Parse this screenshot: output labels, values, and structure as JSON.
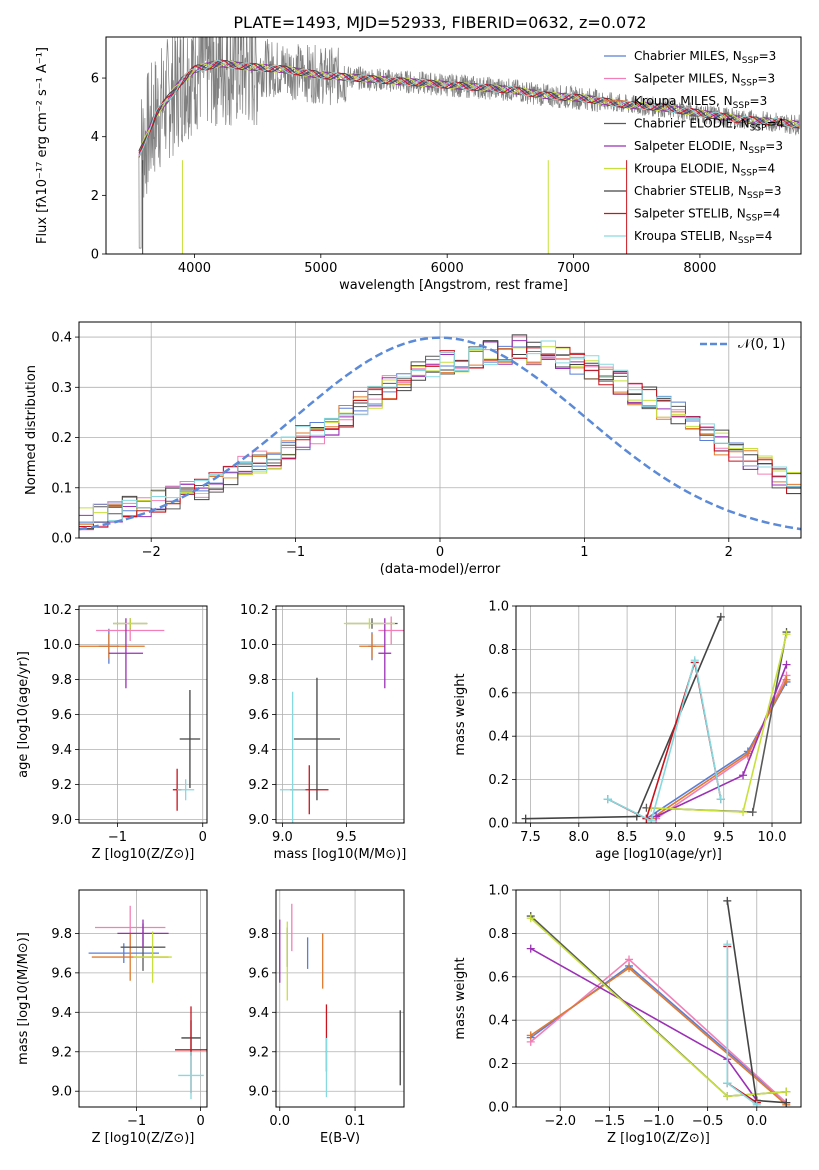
{
  "title": "PLATE=1493, MJD=52933, FIBERID=0632, z=0.072",
  "colors": {
    "Chabrier MILES": "#5b7fd6",
    "Salpeter MILES": "#f27fb6",
    "Kroupa MILES": "#e07a2e",
    "Chabrier ELODIE": "#5a5a5a",
    "Salpeter ELODIE": "#9b30b5",
    "Kroupa ELODIE": "#c8e03c",
    "Chabrier STELIB": "#444444",
    "Salpeter STELIB": "#c8141e",
    "Kroupa STELIB": "#86d9df",
    "data": "#808080",
    "normal": "#5b8ad8"
  },
  "chart_data": [
    {
      "type": "line",
      "panel": "spectrum",
      "xlabel": "wavelength [Angstrom, rest frame]",
      "ylabel": "Flux [fλ10⁻¹⁷ erg cm⁻² s⁻¹ A⁻¹]",
      "xlim": [
        3300,
        8800
      ],
      "ylim": [
        0,
        7.4
      ],
      "xticks": [
        "4000",
        "5000",
        "6000",
        "7000",
        "8000"
      ],
      "yticks": [
        "0",
        "2",
        "4",
        "6"
      ],
      "legend": [
        {
          "name": "Chabrier MILES",
          "nssp": "3"
        },
        {
          "name": "Salpeter MILES",
          "nssp": "3"
        },
        {
          "name": "Kroupa MILES",
          "nssp": "3"
        },
        {
          "name": "Chabrier ELODIE",
          "nssp": "4"
        },
        {
          "name": "Salpeter ELODIE",
          "nssp": "3"
        },
        {
          "name": "Kroupa ELODIE",
          "nssp": "4"
        },
        {
          "name": "Chabrier STELIB",
          "nssp": "3"
        },
        {
          "name": "Salpeter STELIB",
          "nssp": "4"
        },
        {
          "name": "Kroupa STELIB",
          "nssp": "4"
        }
      ],
      "legend_position": "right",
      "model_continuum": {
        "x": [
          3560,
          3700,
          3900,
          4000,
          4200,
          4400,
          4700,
          5000,
          5300,
          5600,
          5900,
          6200,
          6500,
          6800,
          7100,
          7400,
          7700,
          8000,
          8300,
          8600,
          8800
        ],
        "y": [
          3.4,
          4.8,
          5.9,
          6.3,
          6.5,
          6.4,
          6.3,
          6.1,
          6.0,
          5.9,
          5.8,
          5.7,
          5.6,
          5.4,
          5.3,
          5.1,
          5.0,
          4.8,
          4.6,
          4.5,
          4.4
        ]
      },
      "grid": false
    },
    {
      "type": "bar",
      "panel": "residual_histogram",
      "xlabel": "(data-model)/error",
      "ylabel": "Normed distribution",
      "xlim": [
        -2.5,
        2.5
      ],
      "ylim": [
        0,
        0.43
      ],
      "xticks": [
        "−2",
        "−1",
        "0",
        "1",
        "2"
      ],
      "yticks": [
        "0.0",
        "0.1",
        "0.2",
        "0.3",
        "0.4"
      ],
      "bin_width": 0.1,
      "bin_start": -2.5,
      "histogram": [
        0.04,
        0.045,
        0.05,
        0.06,
        0.065,
        0.07,
        0.08,
        0.09,
        0.1,
        0.11,
        0.12,
        0.14,
        0.15,
        0.16,
        0.18,
        0.2,
        0.21,
        0.22,
        0.24,
        0.27,
        0.28,
        0.3,
        0.31,
        0.33,
        0.34,
        0.35,
        0.35,
        0.36,
        0.37,
        0.37,
        0.38,
        0.37,
        0.37,
        0.36,
        0.35,
        0.34,
        0.33,
        0.31,
        0.29,
        0.28,
        0.26,
        0.25,
        0.23,
        0.21,
        0.19,
        0.17,
        0.16,
        0.14,
        0.12,
        0.11,
        0.1
      ],
      "normal": {
        "name": "𝒩(0, 1)",
        "mean": 0,
        "std": 1
      },
      "legend_position": "top-right",
      "grid": true
    },
    {
      "type": "scatter",
      "panel": "age_vs_Z",
      "xlabel": "Z [log10(Z/Z⊙)]",
      "ylabel": "age  [log10(age/yr)]",
      "xlim": [
        -1.45,
        0.05
      ],
      "ylim": [
        8.98,
        10.22
      ],
      "xticks": [
        "−1",
        "0"
      ],
      "yticks": [
        "9.0",
        "9.2",
        "9.4",
        "9.6",
        "9.8",
        "10.0",
        "10.2"
      ],
      "points": [
        {
          "model": "Chabrier MILES",
          "x": -1.1,
          "y": 9.99,
          "xerr": 0.12,
          "yerr": 0.1
        },
        {
          "model": "Salpeter MILES",
          "x": -0.85,
          "y": 10.08,
          "xerr": 0.4,
          "yerr": 0.06
        },
        {
          "model": "Kroupa MILES",
          "x": -1.1,
          "y": 9.99,
          "xerr": 0.42,
          "yerr": 0.07
        },
        {
          "model": "Chabrier ELODIE",
          "x": -0.85,
          "y": 10.12,
          "xerr": 0.2,
          "yerr": 0.03
        },
        {
          "model": "Salpeter ELODIE",
          "x": -0.9,
          "y": 9.95,
          "xerr": 0.2,
          "yerr": 0.2
        },
        {
          "model": "Kroupa ELODIE",
          "x": -0.85,
          "y": 10.12,
          "xerr": 0.2,
          "yerr": 0.03
        },
        {
          "model": "Chabrier STELIB",
          "x": -0.15,
          "y": 9.46,
          "xerr": 0.12,
          "yerr": 0.28
        },
        {
          "model": "Salpeter STELIB",
          "x": -0.3,
          "y": 9.17,
          "xerr": 0.05,
          "yerr": 0.12
        },
        {
          "model": "Kroupa STELIB",
          "x": -0.2,
          "y": 9.17,
          "xerr": 0.1,
          "yerr": 0.06
        }
      ],
      "grid": true
    },
    {
      "type": "scatter",
      "panel": "age_vs_mass",
      "xlabel": "mass [log10(M/M⊙)]",
      "ylabel": "",
      "xlim": [
        8.95,
        9.95
      ],
      "ylim": [
        8.98,
        10.22
      ],
      "xticks": [
        "9.0",
        "9.5"
      ],
      "yticks": [
        "9.0",
        "9.2",
        "9.4",
        "9.6",
        "9.8",
        "10.0",
        "10.2"
      ],
      "points": [
        {
          "model": "Chabrier MILES",
          "x": 9.7,
          "y": 9.99,
          "xerr": 0.03,
          "yerr": 0.08
        },
        {
          "model": "Salpeter MILES",
          "x": 9.85,
          "y": 10.08,
          "xerr": 0.1,
          "yerr": 0.08
        },
        {
          "model": "Kroupa MILES",
          "x": 9.7,
          "y": 9.99,
          "xerr": 0.1,
          "yerr": 0.07
        },
        {
          "model": "Chabrier ELODIE",
          "x": 9.7,
          "y": 10.12,
          "xerr": 0.2,
          "yerr": 0.03
        },
        {
          "model": "Salpeter ELODIE",
          "x": 9.8,
          "y": 9.95,
          "xerr": 0.05,
          "yerr": 0.2
        },
        {
          "model": "Kroupa ELODIE",
          "x": 9.68,
          "y": 10.12,
          "xerr": 0.2,
          "yerr": 0.03
        },
        {
          "model": "Chabrier STELIB",
          "x": 9.27,
          "y": 9.46,
          "xerr": 0.18,
          "yerr": 0.35
        },
        {
          "model": "Salpeter STELIB",
          "x": 9.21,
          "y": 9.17,
          "xerr": 0.15,
          "yerr": 0.14
        },
        {
          "model": "Kroupa STELIB",
          "x": 9.08,
          "y": 9.17,
          "xerr": 0.1,
          "yerr": 0.56
        }
      ],
      "grid": true
    },
    {
      "type": "line",
      "panel": "mass_weight_vs_age",
      "xlabel": "age  [log10(age/yr)]",
      "ylabel": "mass weight",
      "xlim": [
        7.35,
        10.3
      ],
      "ylim": [
        0,
        1.0
      ],
      "xticks": [
        "7.5",
        "8.0",
        "8.5",
        "9.0",
        "9.5",
        "10.0"
      ],
      "yticks": [
        "0.0",
        "0.2",
        "0.4",
        "0.6",
        "0.8",
        "1.0"
      ],
      "series": [
        {
          "model": "Chabrier MILES",
          "x": [
            8.7,
            9.75,
            10.15
          ],
          "y": [
            0.02,
            0.33,
            0.65
          ]
        },
        {
          "model": "Salpeter MILES",
          "x": [
            8.8,
            9.75,
            10.15
          ],
          "y": [
            0.02,
            0.31,
            0.68
          ]
        },
        {
          "model": "Kroupa MILES",
          "x": [
            8.75,
            9.75,
            10.15
          ],
          "y": [
            0.02,
            0.32,
            0.66
          ]
        },
        {
          "model": "Chabrier ELODIE",
          "x": [
            8.7,
            9.8,
            10.15
          ],
          "y": [
            0.07,
            0.05,
            0.88
          ]
        },
        {
          "model": "Salpeter ELODIE",
          "x": [
            8.8,
            9.7,
            10.15
          ],
          "y": [
            0.03,
            0.22,
            0.73
          ]
        },
        {
          "model": "Kroupa ELODIE",
          "x": [
            8.75,
            9.7,
            10.15
          ],
          "y": [
            0.07,
            0.05,
            0.87
          ]
        },
        {
          "model": "Chabrier STELIB",
          "x": [
            7.45,
            8.6,
            9.47
          ],
          "y": [
            0.02,
            0.03,
            0.95
          ]
        },
        {
          "model": "Salpeter STELIB",
          "x": [
            8.3,
            8.7,
            9.2,
            9.47
          ],
          "y": [
            0.11,
            0.02,
            0.74,
            0.11
          ]
        },
        {
          "model": "Kroupa STELIB",
          "x": [
            8.3,
            8.75,
            9.2,
            9.47
          ],
          "y": [
            0.11,
            0.01,
            0.75,
            0.11
          ]
        }
      ],
      "grid": true
    },
    {
      "type": "scatter",
      "panel": "mass_vs_Z",
      "xlabel": "Z [log10(Z/Z⊙)]",
      "ylabel": "mass [log10(M/M⊙)]",
      "xlim": [
        -1.9,
        0.1
      ],
      "ylim": [
        8.92,
        10.02
      ],
      "xticks": [
        "−1",
        "0"
      ],
      "yticks": [
        "9.0",
        "9.2",
        "9.4",
        "9.6",
        "9.8"
      ],
      "points": [
        {
          "model": "Chabrier MILES",
          "x": -1.2,
          "y": 9.7,
          "xerr": 0.55,
          "yerr": 0.05
        },
        {
          "model": "Salpeter MILES",
          "x": -1.1,
          "y": 9.83,
          "xerr": 0.55,
          "yerr": 0.11
        },
        {
          "model": "Kroupa MILES",
          "x": -1.1,
          "y": 9.68,
          "xerr": 0.6,
          "yerr": 0.12
        },
        {
          "model": "Chabrier ELODIE",
          "x": -0.9,
          "y": 9.73,
          "xerr": 0.35,
          "yerr": 0.12
        },
        {
          "model": "Salpeter ELODIE",
          "x": -0.9,
          "y": 9.8,
          "xerr": 0.4,
          "yerr": 0.07
        },
        {
          "model": "Kroupa ELODIE",
          "x": -0.75,
          "y": 9.68,
          "xerr": 0.3,
          "yerr": 0.13
        },
        {
          "model": "Chabrier STELIB",
          "x": -0.15,
          "y": 9.27,
          "xerr": 0.15,
          "yerr": 0.09
        },
        {
          "model": "Salpeter STELIB",
          "x": -0.15,
          "y": 9.21,
          "xerr": 0.25,
          "yerr": 0.22
        },
        {
          "model": "Kroupa STELIB",
          "x": -0.15,
          "y": 9.08,
          "xerr": 0.2,
          "yerr": 0.12
        }
      ],
      "grid": true
    },
    {
      "type": "scatter",
      "panel": "mass_vs_EBV",
      "xlabel": "E(B-V)",
      "ylabel": "",
      "xlim": [
        -0.005,
        0.165
      ],
      "ylim": [
        8.92,
        10.02
      ],
      "xticks": [
        "0.0",
        "0.1"
      ],
      "yticks": [
        "9.0",
        "9.2",
        "9.4",
        "9.6",
        "9.8"
      ],
      "points": [
        {
          "model": "Chabrier MILES",
          "x": 0.037,
          "y": 9.7,
          "yerr": 0.08
        },
        {
          "model": "Salpeter MILES",
          "x": 0.016,
          "y": 9.83,
          "yerr": 0.12
        },
        {
          "model": "Kroupa MILES",
          "x": 0.057,
          "y": 9.66,
          "yerr": 0.14
        },
        {
          "model": "Chabrier ELODIE",
          "x": 0.01,
          "y": 9.73,
          "yerr": 0.1
        },
        {
          "model": "Salpeter ELODIE",
          "x": 0.0,
          "y": 9.71,
          "yerr": 0.16
        },
        {
          "model": "Kroupa ELODIE",
          "x": 0.01,
          "y": 9.66,
          "yerr": 0.2
        },
        {
          "model": "Chabrier STELIB",
          "x": 0.16,
          "y": 9.22,
          "yerr": 0.19
        },
        {
          "model": "Salpeter STELIB",
          "x": 0.062,
          "y": 9.27,
          "yerr": 0.17
        },
        {
          "model": "Kroupa STELIB",
          "x": 0.062,
          "y": 9.12,
          "yerr": 0.15
        }
      ],
      "grid": true
    },
    {
      "type": "line",
      "panel": "mass_weight_vs_Z",
      "xlabel": "Z [log10(Z/Z⊙)]",
      "ylabel": "mass weight",
      "xlim": [
        -2.45,
        0.45
      ],
      "ylim": [
        0,
        1.0
      ],
      "xticks": [
        "−2.0",
        "−1.5",
        "−1.0",
        "−0.5",
        "0.0"
      ],
      "yticks": [
        "0.0",
        "0.2",
        "0.4",
        "0.6",
        "0.8",
        "1.0"
      ],
      "series": [
        {
          "model": "Chabrier MILES",
          "x": [
            -2.3,
            -1.3,
            0.3
          ],
          "y": [
            0.32,
            0.65,
            0.02
          ]
        },
        {
          "model": "Salpeter MILES",
          "x": [
            -2.3,
            -1.3,
            0.3
          ],
          "y": [
            0.3,
            0.68,
            0.02
          ]
        },
        {
          "model": "Kroupa MILES",
          "x": [
            -2.3,
            -1.3,
            0.3
          ],
          "y": [
            0.33,
            0.64,
            0.01
          ]
        },
        {
          "model": "Chabrier ELODIE",
          "x": [
            -2.3,
            -0.3,
            0.3
          ],
          "y": [
            0.88,
            0.05,
            0.07
          ]
        },
        {
          "model": "Salpeter ELODIE",
          "x": [
            -2.3,
            -0.3,
            0.0
          ],
          "y": [
            0.73,
            0.22,
            0.03
          ]
        },
        {
          "model": "Kroupa ELODIE",
          "x": [
            -2.3,
            -0.3,
            0.3
          ],
          "y": [
            0.87,
            0.05,
            0.07
          ]
        },
        {
          "model": "Chabrier STELIB",
          "x": [
            -0.3,
            0.0,
            0.0,
            0.3
          ],
          "y": [
            0.95,
            0.02,
            0.03,
            0.02
          ]
        },
        {
          "model": "Salpeter STELIB",
          "x": [
            -0.3,
            -0.3,
            0.0
          ],
          "y": [
            0.74,
            0.11,
            0.02
          ]
        },
        {
          "model": "Kroupa STELIB",
          "x": [
            -0.3,
            -0.3,
            0.0
          ],
          "y": [
            0.75,
            0.11,
            0.01
          ]
        }
      ],
      "grid": true
    }
  ]
}
